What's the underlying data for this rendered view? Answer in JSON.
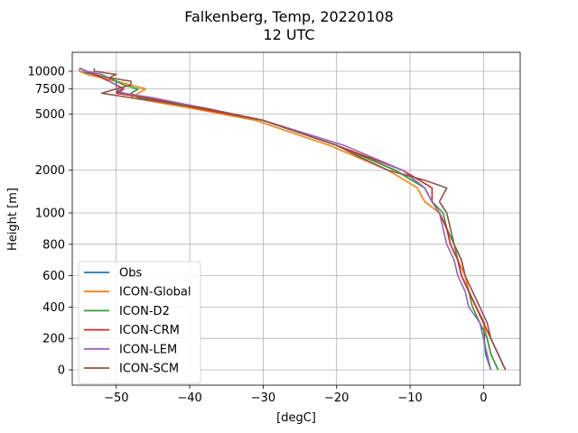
{
  "chart_data": {
    "type": "line",
    "title": "Falkenberg, Temp, 20220108",
    "subtitle": "12 UTC",
    "xlabel": "[degC]",
    "ylabel": "Height [m]",
    "xlim": [
      -56,
      5
    ],
    "xticks": [
      {
        "value": -50,
        "label": "−50"
      },
      {
        "value": -40,
        "label": "−40"
      },
      {
        "value": -30,
        "label": "−30"
      },
      {
        "value": -20,
        "label": "−20"
      },
      {
        "value": -10,
        "label": "−10"
      },
      {
        "value": 0,
        "label": "0"
      }
    ],
    "y_scale": "piecewise linear (0–1000 m) / logarithmic above 1000 m",
    "yticks": [
      {
        "value": 0,
        "label": "0"
      },
      {
        "value": 200,
        "label": "200"
      },
      {
        "value": 400,
        "label": "400"
      },
      {
        "value": 600,
        "label": "600"
      },
      {
        "value": 800,
        "label": "800"
      },
      {
        "value": 1000,
        "label": "1000"
      },
      {
        "value": 2000,
        "label": "2000"
      },
      {
        "value": 5000,
        "label": "5000"
      },
      {
        "value": 7500,
        "label": "7500"
      },
      {
        "value": 10000,
        "label": "10000"
      }
    ],
    "grid": true,
    "legend_position": "lower-left",
    "series": [
      {
        "name": "Obs",
        "color": "#1f77b4",
        "points": [
          [
            1,
            0
          ],
          [
            0.3,
            100
          ],
          [
            0.1,
            200
          ],
          [
            0.1,
            300
          ],
          [
            -1,
            400
          ],
          [
            -2,
            500
          ],
          [
            -2.5,
            600
          ],
          [
            -3,
            700
          ],
          [
            -4,
            800
          ],
          [
            -5,
            900
          ],
          [
            -6,
            1000
          ],
          [
            -7,
            1200
          ],
          [
            -8,
            1500
          ],
          [
            -12,
            2000
          ],
          [
            -20,
            3000
          ],
          [
            -30,
            4500
          ],
          [
            -38,
            5500
          ],
          [
            -46,
            6500
          ],
          [
            -50,
            7200
          ],
          [
            -49,
            7500
          ],
          [
            -50,
            8000
          ],
          [
            -50,
            8500
          ],
          [
            -52,
            9000
          ],
          [
            -53,
            9500
          ],
          [
            -55,
            10000
          ],
          [
            -55,
            10500
          ]
        ]
      },
      {
        "name": "ICON-Global",
        "color": "#ff7f0e",
        "points": [
          [
            2,
            0
          ],
          [
            1,
            100
          ],
          [
            0.5,
            200
          ],
          [
            0,
            300
          ],
          [
            -1,
            400
          ],
          [
            -2,
            500
          ],
          [
            -2.5,
            600
          ],
          [
            -3.5,
            700
          ],
          [
            -4.5,
            800
          ],
          [
            -5,
            900
          ],
          [
            -6,
            1000
          ],
          [
            -8,
            1200
          ],
          [
            -9,
            1500
          ],
          [
            -13,
            2000
          ],
          [
            -21,
            3000
          ],
          [
            -31,
            4500
          ],
          [
            -40,
            5500
          ],
          [
            -48,
            6500
          ],
          [
            -47,
            7000
          ],
          [
            -46,
            7500
          ],
          [
            -48,
            8000
          ],
          [
            -50,
            8500
          ],
          [
            -52,
            9000
          ],
          [
            -54,
            9500
          ],
          [
            -55,
            10000
          ],
          [
            -55,
            10500
          ]
        ]
      },
      {
        "name": "ICON-D2",
        "color": "#2ca02c",
        "points": [
          [
            2,
            0
          ],
          [
            1,
            100
          ],
          [
            0.5,
            200
          ],
          [
            -0.5,
            300
          ],
          [
            -1.5,
            400
          ],
          [
            -2,
            500
          ],
          [
            -3,
            600
          ],
          [
            -3.5,
            700
          ],
          [
            -4,
            800
          ],
          [
            -5,
            900
          ],
          [
            -5.5,
            1000
          ],
          [
            -7,
            1200
          ],
          [
            -8,
            1500
          ],
          [
            -12,
            2000
          ],
          [
            -20,
            3000
          ],
          [
            -30,
            4500
          ],
          [
            -39,
            5500
          ],
          [
            -47,
            6500
          ],
          [
            -48,
            7000
          ],
          [
            -47,
            7500
          ],
          [
            -49,
            8000
          ],
          [
            -50,
            8500
          ],
          [
            -51,
            9000
          ],
          [
            -53,
            9500
          ],
          [
            -54,
            10000
          ],
          [
            -55,
            10500
          ]
        ]
      },
      {
        "name": "ICON-CRM",
        "color": "#d62728",
        "points": [
          [
            3,
            0
          ],
          [
            2,
            100
          ],
          [
            1,
            200
          ],
          [
            0,
            300
          ],
          [
            -1,
            400
          ],
          [
            -2,
            500
          ],
          [
            -3,
            600
          ],
          [
            -3.5,
            700
          ],
          [
            -4.5,
            800
          ],
          [
            -5,
            900
          ],
          [
            -6,
            1000
          ],
          [
            -7,
            1200
          ],
          [
            -7,
            1500
          ],
          [
            -11,
            2000
          ],
          [
            -20,
            3000
          ],
          [
            -30,
            4500
          ],
          [
            -39,
            5500
          ],
          [
            -46,
            6500
          ],
          [
            -50,
            7000
          ],
          [
            -49,
            7500
          ],
          [
            -50,
            8000
          ],
          [
            -51,
            8500
          ],
          [
            -52,
            9000
          ],
          [
            -53,
            9500
          ],
          [
            -54,
            10000
          ],
          [
            -55,
            10500
          ]
        ]
      },
      {
        "name": "ICON-LEM",
        "color": "#9467bd",
        "points": [
          [
            1,
            0
          ],
          [
            0.5,
            100
          ],
          [
            0,
            200
          ],
          [
            -0.5,
            300
          ],
          [
            -2,
            400
          ],
          [
            -2.5,
            500
          ],
          [
            -3.5,
            600
          ],
          [
            -4,
            700
          ],
          [
            -5,
            800
          ],
          [
            -5.5,
            900
          ],
          [
            -6,
            1000
          ],
          [
            -7,
            1200
          ],
          [
            -8,
            1500
          ],
          [
            -11,
            2000
          ],
          [
            -19,
            3000
          ],
          [
            -30,
            4500
          ],
          [
            -38,
            5500
          ],
          [
            -45,
            6500
          ],
          [
            -49,
            7000
          ],
          [
            -50,
            7500
          ],
          [
            -50,
            8000
          ],
          [
            -51,
            8500
          ],
          [
            -51,
            9000
          ],
          [
            -52,
            9500
          ],
          [
            -54,
            10000
          ],
          [
            -55,
            10500
          ]
        ]
      },
      {
        "name": "ICON-SCM",
        "color": "#8c564b",
        "points": [
          [
            3,
            0
          ],
          [
            2,
            100
          ],
          [
            1,
            200
          ],
          [
            0.5,
            300
          ],
          [
            -0.5,
            400
          ],
          [
            -1.5,
            500
          ],
          [
            -2.5,
            600
          ],
          [
            -3,
            700
          ],
          [
            -4,
            800
          ],
          [
            -4.5,
            900
          ],
          [
            -5,
            1000
          ],
          [
            -6,
            1200
          ],
          [
            -5,
            1500
          ],
          [
            -8,
            1700
          ],
          [
            -13,
            2000
          ],
          [
            -17,
            2500
          ],
          [
            -20,
            3000
          ],
          [
            -30,
            4500
          ],
          [
            -38,
            5500
          ],
          [
            -48,
            6500
          ],
          [
            -52,
            7000
          ],
          [
            -50,
            7500
          ],
          [
            -48,
            8000
          ],
          [
            -48,
            8500
          ],
          [
            -51,
            9000
          ],
          [
            -50,
            9500
          ],
          [
            -53,
            10000
          ],
          [
            -53,
            10500
          ]
        ]
      }
    ]
  }
}
